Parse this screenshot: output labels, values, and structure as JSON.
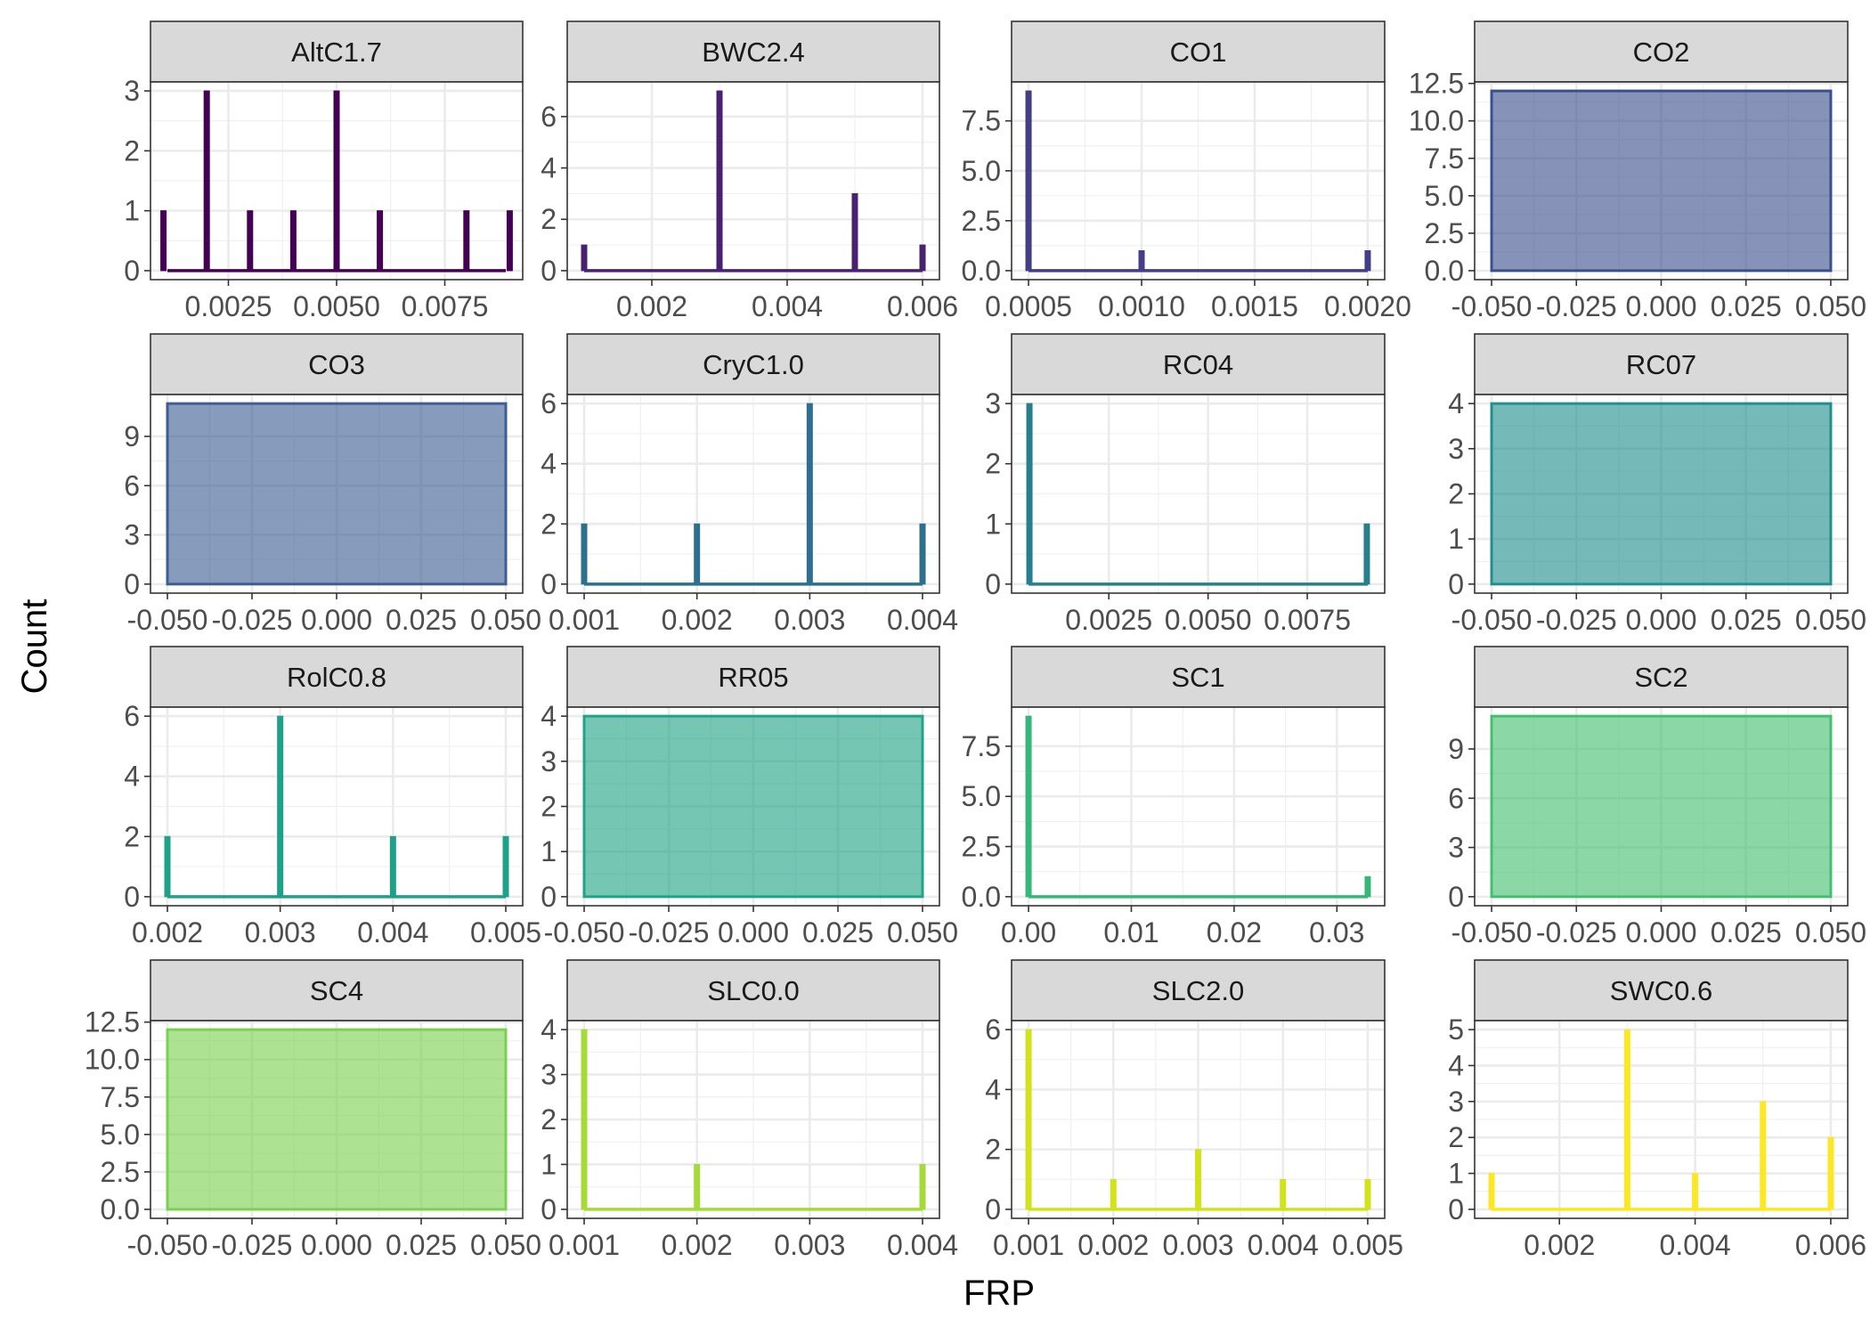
{
  "chart_data": {
    "type": "bar",
    "xlabel": "FRP",
    "ylabel": "Count",
    "grid": true,
    "panels": [
      {
        "name": "AltC1.7",
        "color": "#440154",
        "xlim": [
          0.0007,
          0.0093
        ],
        "ylim": [
          -0.15,
          3.15
        ],
        "xticks": [
          0.0025,
          0.005,
          0.0075
        ],
        "xtick_labels": [
          "0.0025",
          "0.0050",
          "0.0075"
        ],
        "yticks": [
          0,
          1,
          2,
          3
        ],
        "ytick_labels": [
          "0",
          "1",
          "2",
          "3"
        ],
        "bars": [
          {
            "x": 0.001,
            "y": 1
          },
          {
            "x": 0.002,
            "y": 3
          },
          {
            "x": 0.003,
            "y": 1
          },
          {
            "x": 0.004,
            "y": 1
          },
          {
            "x": 0.005,
            "y": 3
          },
          {
            "x": 0.006,
            "y": 1
          },
          {
            "x": 0.008,
            "y": 1
          },
          {
            "x": 0.009,
            "y": 1
          }
        ]
      },
      {
        "name": "BWC2.4",
        "color": "#482173",
        "xlim": [
          0.00075,
          0.00625
        ],
        "ylim": [
          -0.35,
          7.35
        ],
        "xticks": [
          0.002,
          0.004,
          0.006
        ],
        "xtick_labels": [
          "0.002",
          "0.004",
          "0.006"
        ],
        "yticks": [
          0,
          2,
          4,
          6
        ],
        "ytick_labels": [
          "0",
          "2",
          "4",
          "6"
        ],
        "bars": [
          {
            "x": 0.001,
            "y": 1
          },
          {
            "x": 0.003,
            "y": 7
          },
          {
            "x": 0.005,
            "y": 3
          },
          {
            "x": 0.006,
            "y": 1
          }
        ]
      },
      {
        "name": "CO1",
        "color": "#433E85",
        "xlim": [
          0.000425,
          0.002075
        ],
        "ylim": [
          -0.45,
          9.45
        ],
        "xticks": [
          0.0005,
          0.001,
          0.0015,
          0.002
        ],
        "xtick_labels": [
          "0.0005",
          "0.0010",
          "0.0015",
          "0.0020"
        ],
        "yticks": [
          0,
          2.5,
          5,
          7.5
        ],
        "ytick_labels": [
          "0.0",
          "2.5",
          "5.0",
          "7.5"
        ],
        "bars": [
          {
            "x": 0.0005,
            "y": 9
          },
          {
            "x": 0.001,
            "y": 1
          },
          {
            "x": 0.002,
            "y": 1
          }
        ]
      },
      {
        "name": "CO2",
        "color": "#38598C",
        "xlim": [
          -0.055,
          0.055
        ],
        "ylim": [
          -0.6,
          12.6
        ],
        "xticks": [
          -0.05,
          -0.025,
          0,
          0.025,
          0.05
        ],
        "xtick_labels": [
          "-0.050",
          "-0.025",
          "0.000",
          "0.025",
          "0.050"
        ],
        "yticks": [
          0,
          2.5,
          5,
          7.5,
          10,
          12.5
        ],
        "ytick_labels": [
          "0.0",
          "2.5",
          "5.0",
          "7.5",
          "10.0",
          "12.5"
        ],
        "block": 12,
        "block_color": "#3B4F8C"
      },
      {
        "name": "CO3",
        "color": "#38598C",
        "xlim": [
          -0.055,
          0.055
        ],
        "ylim": [
          -0.55,
          11.55
        ],
        "xticks": [
          -0.05,
          -0.025,
          0,
          0.025,
          0.05
        ],
        "xtick_labels": [
          "-0.050",
          "-0.025",
          "0.000",
          "0.025",
          "0.050"
        ],
        "yticks": [
          0,
          3,
          6,
          9
        ],
        "ytick_labels": [
          "0",
          "3",
          "6",
          "9"
        ],
        "block": 11,
        "block_color": "#3E5D94"
      },
      {
        "name": "CryC1.0",
        "color": "#2D6F8E",
        "xlim": [
          0.00085,
          0.00415
        ],
        "ylim": [
          -0.3,
          6.3
        ],
        "xticks": [
          0.001,
          0.002,
          0.003,
          0.004
        ],
        "xtick_labels": [
          "0.001",
          "0.002",
          "0.003",
          "0.004"
        ],
        "yticks": [
          0,
          2,
          4,
          6
        ],
        "ytick_labels": [
          "0",
          "2",
          "4",
          "6"
        ],
        "bars": [
          {
            "x": 0.001,
            "y": 2
          },
          {
            "x": 0.002,
            "y": 2
          },
          {
            "x": 0.003,
            "y": 6
          },
          {
            "x": 0.004,
            "y": 2
          }
        ]
      },
      {
        "name": "RC04",
        "color": "#277F8E",
        "xlim": [
          5e-05,
          0.00945
        ],
        "ylim": [
          -0.15,
          3.15
        ],
        "xticks": [
          0.0025,
          0.005,
          0.0075
        ],
        "xtick_labels": [
          "0.0025",
          "0.0050",
          "0.0075"
        ],
        "yticks": [
          0,
          1,
          2,
          3
        ],
        "ytick_labels": [
          "0",
          "1",
          "2",
          "3"
        ],
        "bars": [
          {
            "x": 0.0005,
            "y": 3
          },
          {
            "x": 0.009,
            "y": 1
          }
        ]
      },
      {
        "name": "RC07",
        "color": "#21918C",
        "xlim": [
          -0.055,
          0.055
        ],
        "ylim": [
          -0.2,
          4.2
        ],
        "xticks": [
          -0.05,
          -0.025,
          0,
          0.025,
          0.05
        ],
        "xtick_labels": [
          "-0.050",
          "-0.025",
          "0.000",
          "0.025",
          "0.050"
        ],
        "yticks": [
          0,
          1,
          2,
          3,
          4
        ],
        "ytick_labels": [
          "0",
          "1",
          "2",
          "3",
          "4"
        ],
        "block": 4,
        "block_color": "#21908C"
      },
      {
        "name": "RolC0.8",
        "color": "#1FA088",
        "xlim": [
          0.00185,
          0.00515
        ],
        "ylim": [
          -0.3,
          6.3
        ],
        "xticks": [
          0.002,
          0.003,
          0.004,
          0.005
        ],
        "xtick_labels": [
          "0.002",
          "0.003",
          "0.004",
          "0.005"
        ],
        "yticks": [
          0,
          2,
          4,
          6
        ],
        "ytick_labels": [
          "0",
          "2",
          "4",
          "6"
        ],
        "bars": [
          {
            "x": 0.002,
            "y": 2
          },
          {
            "x": 0.003,
            "y": 6
          },
          {
            "x": 0.004,
            "y": 2
          },
          {
            "x": 0.005,
            "y": 2
          }
        ]
      },
      {
        "name": "RR05",
        "color": "#22A884",
        "xlim": [
          -0.055,
          0.055
        ],
        "ylim": [
          -0.2,
          4.2
        ],
        "xticks": [
          -0.05,
          -0.025,
          0,
          0.025,
          0.05
        ],
        "xtick_labels": [
          "-0.050",
          "-0.025",
          "0.000",
          "0.025",
          "0.050"
        ],
        "yticks": [
          0,
          1,
          2,
          3,
          4
        ],
        "ytick_labels": [
          "0",
          "1",
          "2",
          "3",
          "4"
        ],
        "block": 4,
        "block_color": "#20A486"
      },
      {
        "name": "SC1",
        "color": "#35B779",
        "xlim": [
          -0.00165,
          0.03465
        ],
        "ylim": [
          -0.45,
          9.45
        ],
        "xticks": [
          0,
          0.01,
          0.02,
          0.03
        ],
        "xtick_labels": [
          "0.00",
          "0.01",
          "0.02",
          "0.03"
        ],
        "yticks": [
          0,
          2.5,
          5,
          7.5
        ],
        "ytick_labels": [
          "0.0",
          "2.5",
          "5.0",
          "7.5"
        ],
        "bars": [
          {
            "x": 0,
            "y": 9
          },
          {
            "x": 0.033,
            "y": 1
          }
        ]
      },
      {
        "name": "SC2",
        "color": "#4AC16D",
        "xlim": [
          -0.055,
          0.055
        ],
        "ylim": [
          -0.55,
          11.55
        ],
        "xticks": [
          -0.05,
          -0.025,
          0,
          0.025,
          0.05
        ],
        "xtick_labels": [
          "-0.050",
          "-0.025",
          "0.000",
          "0.025",
          "0.050"
        ],
        "yticks": [
          0,
          3,
          6,
          9
        ],
        "ytick_labels": [
          "0",
          "3",
          "6",
          "9"
        ],
        "block": 11,
        "block_color": "#44BF70"
      },
      {
        "name": "SC4",
        "color": "#7AD151",
        "xlim": [
          -0.055,
          0.055
        ],
        "ylim": [
          -0.6,
          12.6
        ],
        "xticks": [
          -0.05,
          -0.025,
          0,
          0.025,
          0.05
        ],
        "xtick_labels": [
          "-0.050",
          "-0.025",
          "0.000",
          "0.025",
          "0.050"
        ],
        "yticks": [
          0,
          2.5,
          5,
          7.5,
          10,
          12.5
        ],
        "ytick_labels": [
          "0.0",
          "2.5",
          "5.0",
          "7.5",
          "10.0",
          "12.5"
        ],
        "block": 12,
        "block_color": "#7AD151"
      },
      {
        "name": "SLC0.0",
        "color": "#A5DB36",
        "xlim": [
          0.00085,
          0.00415
        ],
        "ylim": [
          -0.2,
          4.2
        ],
        "xticks": [
          0.001,
          0.002,
          0.003,
          0.004
        ],
        "xtick_labels": [
          "0.001",
          "0.002",
          "0.003",
          "0.004"
        ],
        "yticks": [
          0,
          1,
          2,
          3,
          4
        ],
        "ytick_labels": [
          "0",
          "1",
          "2",
          "3",
          "4"
        ],
        "bars": [
          {
            "x": 0.001,
            "y": 4
          },
          {
            "x": 0.002,
            "y": 1
          },
          {
            "x": 0.004,
            "y": 1
          }
        ]
      },
      {
        "name": "SLC2.0",
        "color": "#D2E21B",
        "xlim": [
          0.0008,
          0.0052
        ],
        "ylim": [
          -0.3,
          6.3
        ],
        "xticks": [
          0.001,
          0.002,
          0.003,
          0.004,
          0.005
        ],
        "xtick_labels": [
          "0.001",
          "0.002",
          "0.003",
          "0.004",
          "0.005"
        ],
        "yticks": [
          0,
          2,
          4,
          6
        ],
        "ytick_labels": [
          "0",
          "2",
          "4",
          "6"
        ],
        "bars": [
          {
            "x": 0.001,
            "y": 6
          },
          {
            "x": 0.002,
            "y": 1
          },
          {
            "x": 0.003,
            "y": 2
          },
          {
            "x": 0.004,
            "y": 1
          },
          {
            "x": 0.005,
            "y": 1
          }
        ]
      },
      {
        "name": "SWC0.6",
        "color": "#FDE725",
        "xlim": [
          0.00075,
          0.00625
        ],
        "ylim": [
          -0.25,
          5.25
        ],
        "xticks": [
          0.002,
          0.004,
          0.006
        ],
        "xtick_labels": [
          "0.002",
          "0.004",
          "0.006"
        ],
        "yticks": [
          0,
          1,
          2,
          3,
          4,
          5
        ],
        "ytick_labels": [
          "0",
          "1",
          "2",
          "3",
          "4",
          "5"
        ],
        "bars": [
          {
            "x": 0.001,
            "y": 1
          },
          {
            "x": 0.003,
            "y": 5
          },
          {
            "x": 0.004,
            "y": 1
          },
          {
            "x": 0.005,
            "y": 3
          },
          {
            "x": 0.006,
            "y": 2
          }
        ]
      }
    ]
  }
}
